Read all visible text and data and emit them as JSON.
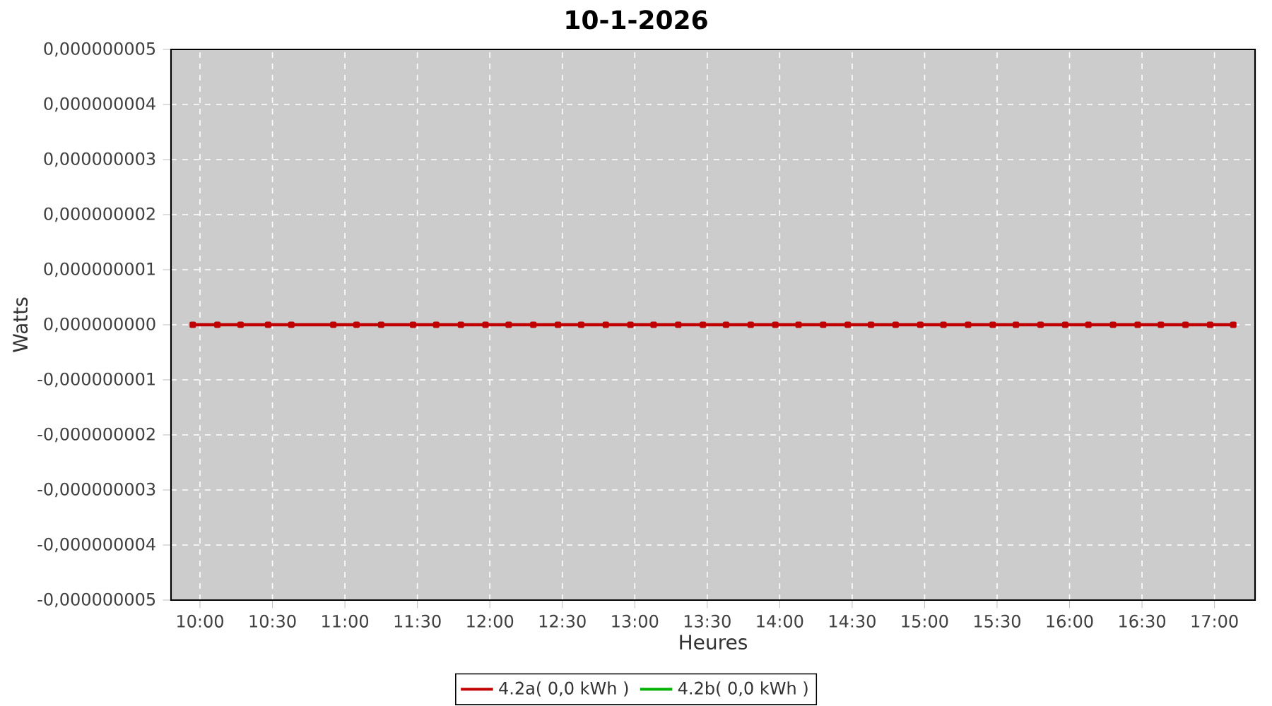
{
  "chart_data": {
    "type": "line",
    "title": "10-1-2026",
    "xlabel": "Heures",
    "ylabel": "Watts",
    "x": [
      9.95,
      10.12,
      10.28,
      10.47,
      10.63,
      10.92,
      11.08,
      11.25,
      11.47,
      11.63,
      11.8,
      11.97,
      12.13,
      12.3,
      12.47,
      12.63,
      12.8,
      12.97,
      13.13,
      13.3,
      13.47,
      13.63,
      13.8,
      13.97,
      14.13,
      14.3,
      14.47,
      14.63,
      14.8,
      14.97,
      15.13,
      15.3,
      15.47,
      15.63,
      15.8,
      15.97,
      16.13,
      16.3,
      16.47,
      16.63,
      16.8,
      16.97,
      17.13
    ],
    "series": [
      {
        "name": "4.2a( 0,0 kWh )",
        "color": "#c00000",
        "values": [
          0,
          0,
          0,
          0,
          0,
          0,
          0,
          0,
          0,
          0,
          0,
          0,
          0,
          0,
          0,
          0,
          0,
          0,
          0,
          0,
          0,
          0,
          0,
          0,
          0,
          0,
          0,
          0,
          0,
          0,
          0,
          0,
          0,
          0,
          0,
          0,
          0,
          0,
          0,
          0,
          0,
          0,
          0
        ]
      },
      {
        "name": "4.2b( 0,0 kWh )",
        "color": "#00b000",
        "values": [
          null,
          null,
          null,
          null,
          null,
          null,
          null,
          null,
          null,
          null,
          null,
          null,
          null,
          null,
          null,
          null,
          null,
          null,
          null,
          null,
          null,
          null,
          null,
          null,
          null,
          null,
          null,
          null,
          null,
          null,
          null,
          null,
          null,
          null,
          null,
          null,
          null,
          null,
          null,
          null,
          null,
          null,
          null
        ]
      }
    ],
    "xlim": [
      9.8,
      17.28
    ],
    "xticks": [
      {
        "value": 10,
        "label": "10:00"
      },
      {
        "value": 10.5,
        "label": "10:30"
      },
      {
        "value": 11,
        "label": "11:00"
      },
      {
        "value": 11.5,
        "label": "11:30"
      },
      {
        "value": 12,
        "label": "12:00"
      },
      {
        "value": 12.5,
        "label": "12:30"
      },
      {
        "value": 13,
        "label": "13:00"
      },
      {
        "value": 13.5,
        "label": "13:30"
      },
      {
        "value": 14,
        "label": "14:00"
      },
      {
        "value": 14.5,
        "label": "14:30"
      },
      {
        "value": 15,
        "label": "15:00"
      },
      {
        "value": 15.5,
        "label": "15:30"
      },
      {
        "value": 16,
        "label": "16:00"
      },
      {
        "value": 16.5,
        "label": "16:30"
      },
      {
        "value": 17,
        "label": "17:00"
      }
    ],
    "ylim": [
      -5e-09,
      5e-09
    ],
    "yticks": [
      {
        "value": 5e-09,
        "label": "0,000000005"
      },
      {
        "value": 4e-09,
        "label": "0,000000004"
      },
      {
        "value": 3e-09,
        "label": "0,000000003"
      },
      {
        "value": 2e-09,
        "label": "0,000000002"
      },
      {
        "value": 1e-09,
        "label": "0,000000001"
      },
      {
        "value": 0,
        "label": "0,000000000"
      },
      {
        "value": -1e-09,
        "label": "-0,000000001"
      },
      {
        "value": -2e-09,
        "label": "-0,000000002"
      },
      {
        "value": -3e-09,
        "label": "-0,000000003"
      },
      {
        "value": -4e-09,
        "label": "-0,000000004"
      },
      {
        "value": -5e-09,
        "label": "-0,000000005"
      }
    ],
    "grid": true,
    "legend": "bottom",
    "marker": "square",
    "line_style": "solid"
  }
}
